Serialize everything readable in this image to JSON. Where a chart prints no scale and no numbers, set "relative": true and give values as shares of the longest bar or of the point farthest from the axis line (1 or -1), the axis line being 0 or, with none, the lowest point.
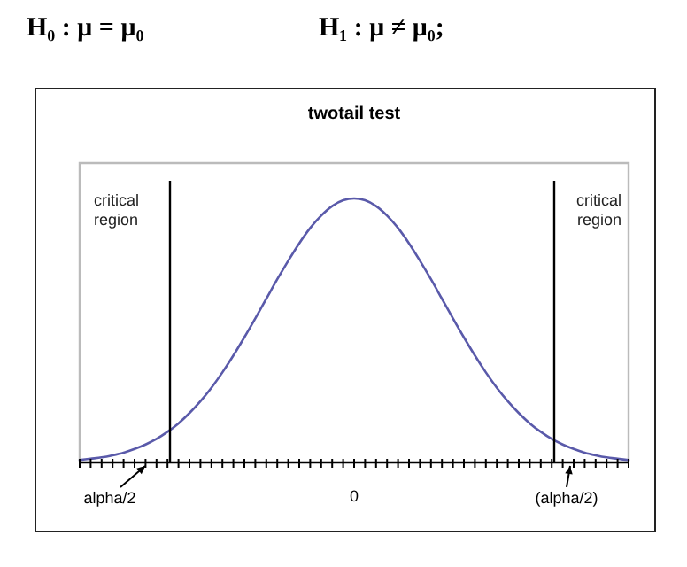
{
  "chart_data": {
    "type": "line",
    "title": "twotail test",
    "relative": true,
    "annotations": [
      "H₀ : μ = μ₀",
      "H₁ : μ ≠ μ₀;",
      "0",
      "critical region",
      "critical region",
      "alpha/2",
      "(alpha/2)"
    ],
    "categories": [
      null,
      null,
      null,
      null,
      null,
      null,
      null,
      null,
      null,
      null,
      null,
      null,
      null,
      null,
      null,
      null,
      null,
      null,
      null,
      null,
      null,
      null,
      null,
      null,
      null,
      null,
      null,
      null,
      null,
      null,
      null,
      null,
      null,
      null,
      null,
      null,
      null,
      null,
      null,
      null,
      null,
      null,
      null,
      null,
      null,
      null,
      null,
      null,
      null,
      null,
      null
    ],
    "series": [
      {
        "color": "#5a5aaa",
        "values": [
          0.009,
          0.014,
          0.019,
          0.027,
          0.037,
          0.051,
          0.068,
          0.089,
          0.116,
          0.148,
          0.187,
          0.232,
          0.283,
          0.341,
          0.405,
          0.474,
          0.546,
          0.62,
          0.694,
          0.764,
          0.83,
          0.888,
          0.935,
          0.971,
          0.993,
          1,
          0.993,
          0.971,
          0.935,
          0.888,
          0.83,
          0.764,
          0.694,
          0.62,
          0.546,
          0.474,
          0.405,
          0.341,
          0.283,
          0.232,
          0.187,
          0.148,
          0.116,
          0.089,
          0.068,
          0.051,
          0.037,
          0.027,
          0.019,
          0.014,
          0.009
        ]
      }
    ],
    "marker": "none",
    "line_style": "solid"
  }
}
